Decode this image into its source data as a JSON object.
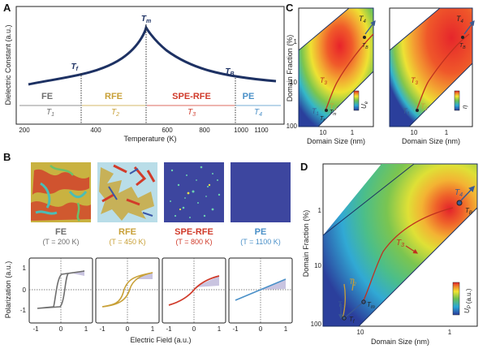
{
  "panels": {
    "a": {
      "label": "A",
      "ylabel": "Dielectric Constant (a.u.)",
      "xlabel": "Temperature (K)",
      "xticks": [
        "200",
        "400",
        "600",
        "800",
        "1000",
        "1100"
      ],
      "marks": {
        "tf": "T",
        "tf_sub": "f",
        "tm": "T",
        "tm_sub": "m",
        "tb": "T",
        "tb_sub": "B"
      },
      "phases": [
        {
          "name": "FE",
          "t": "T",
          "sub": "1",
          "color": "#6e6e6e"
        },
        {
          "name": "RFE",
          "t": "T",
          "sub": "2",
          "color": "#c8a037"
        },
        {
          "name": "SPE-RFE",
          "t": "T",
          "sub": "3",
          "color": "#d03a2a"
        },
        {
          "name": "PE",
          "t": "T",
          "sub": "4",
          "color": "#4a90c8"
        }
      ]
    },
    "b": {
      "label": "B",
      "ylabel": "Polarization (a.u.)",
      "xlabel": "Electric Field (a.u.)",
      "yticks": [
        "1",
        "0",
        "-1"
      ],
      "xticks": [
        "-1",
        "0",
        "1"
      ],
      "phases": [
        {
          "name": "FE",
          "cond": "(T = 200 K)",
          "color": "#6e6e6e"
        },
        {
          "name": "RFE",
          "cond": "(T = 450 K)",
          "color": "#c8a037"
        },
        {
          "name": "SPE-RFE",
          "cond": "(T = 800 K)",
          "color": "#d03a2a"
        },
        {
          "name": "PE",
          "cond": "(T = 1100 K)",
          "color": "#4a90c8"
        }
      ]
    },
    "c": {
      "label": "C",
      "ylabel": "Domain Fraction (%)",
      "xlabel": "Domain Size (nm)",
      "yticks": [
        "1",
        "10",
        "100"
      ],
      "xticks": [
        "10",
        "1"
      ],
      "bar_labels": [
        "U",
        "η"
      ],
      "bar_sub": "e",
      "bar_unit": "(a.u.)",
      "marks": {
        "t1": "T",
        "t1_sub": "1",
        "t2": "T",
        "t2_sub": "2",
        "t3": "T",
        "t3_sub": "3",
        "t4": "T",
        "t4_sub": "4",
        "tf": "T",
        "tf_sub": "f",
        "tm": "T",
        "tm_sub": "m",
        "tb": "T",
        "tb_sub": "B"
      }
    },
    "d": {
      "label": "D",
      "ylabel": "Domain Fraction (%)",
      "xlabel": "Domain Size (nm)",
      "yticks": [
        "1",
        "10",
        "100"
      ],
      "xticks": [
        "10",
        "1"
      ],
      "bar_label": "U",
      "bar_sub": "P",
      "bar_unit": "(a.u.)",
      "marks": {
        "t1": "T",
        "t1_sub": "1",
        "t2": "T",
        "t2_sub": "2",
        "t3": "T",
        "t3_sub": "3",
        "t4": "T",
        "t4_sub": "4",
        "tf": "T",
        "tf_sub": "f",
        "tm": "T",
        "tm_sub": "m",
        "tb": "T",
        "tb_sub": "B"
      }
    }
  },
  "colors": {
    "curve": "#1d3163",
    "ink": "#222222",
    "hyst_fill": "#c9c4e0",
    "map_red": "#e8262a",
    "map_blue": "#283c9a"
  }
}
